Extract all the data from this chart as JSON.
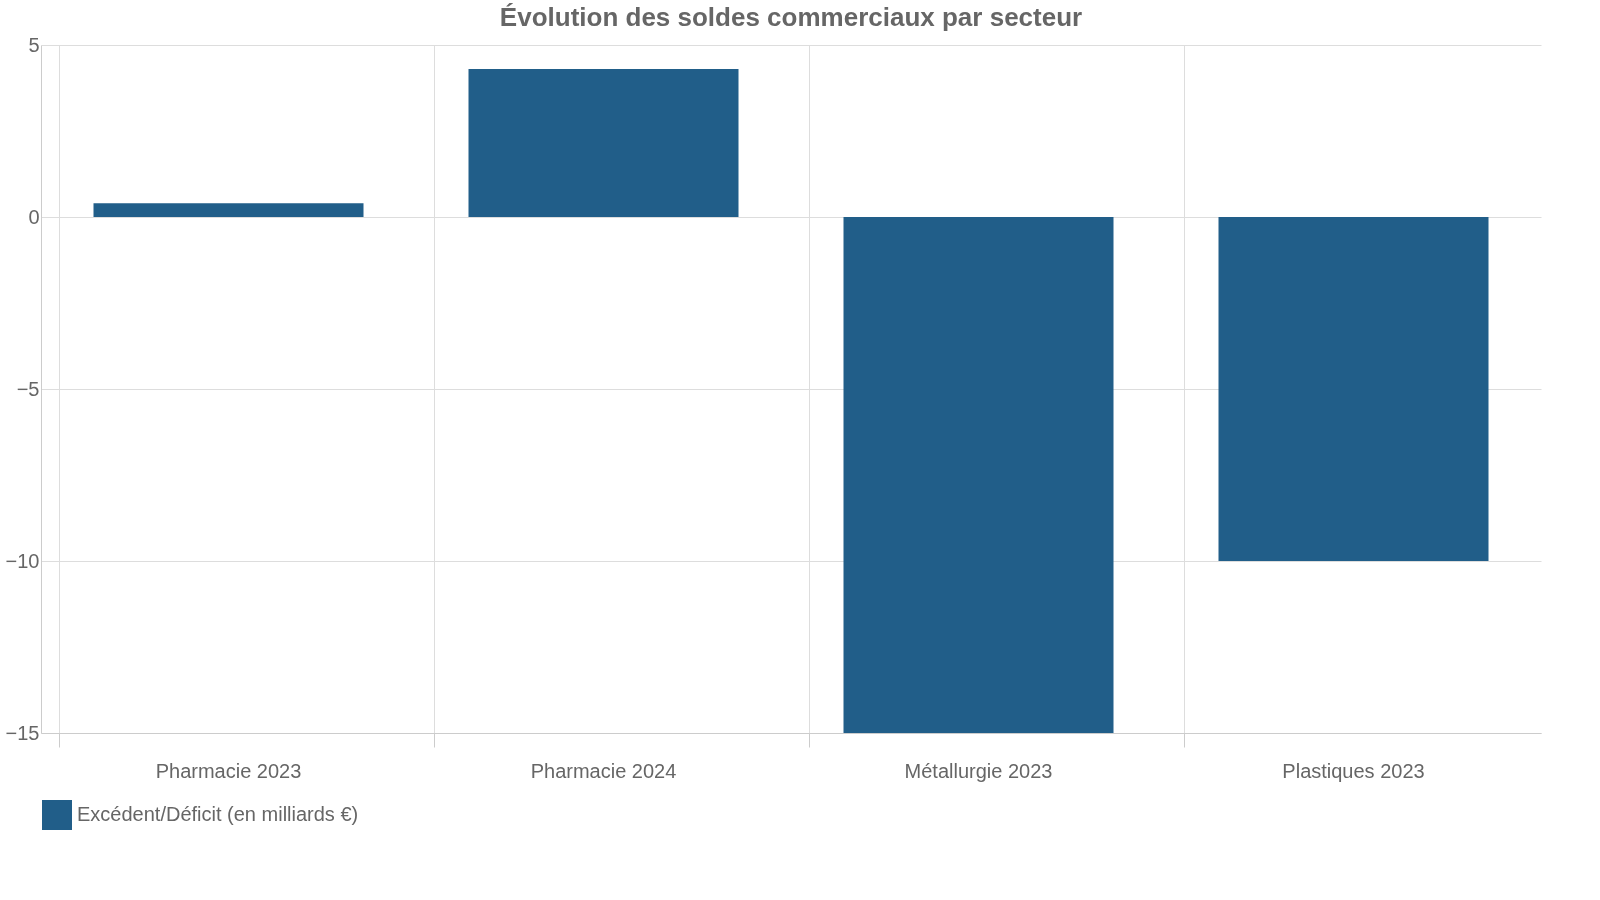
{
  "chart_data": {
    "type": "bar",
    "title": "Évolution des soldes commerciaux par secteur",
    "categories": [
      "Pharmacie 2023",
      "Pharmacie 2024",
      "Métallurgie 2023",
      "Plastiques 2023"
    ],
    "series": [
      {
        "name": "Excédent/Déficit (en milliards €)",
        "color": "#215e89",
        "values": [
          0.4,
          4.3,
          -15,
          -10
        ]
      }
    ],
    "ylim": [
      -15,
      5
    ],
    "yticks": [
      -15,
      -10,
      -5,
      0,
      5
    ],
    "grid": true,
    "legend": "bottom"
  }
}
